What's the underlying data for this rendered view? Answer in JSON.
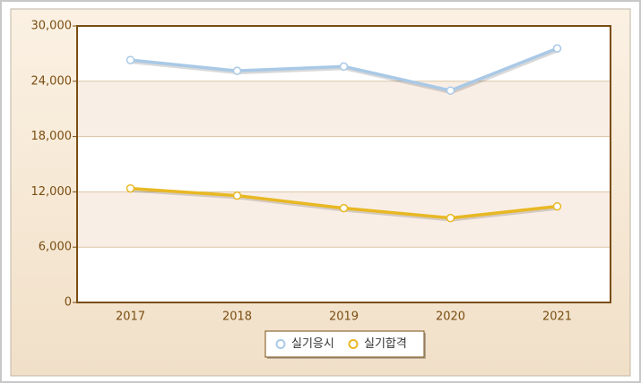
{
  "chart_data": {
    "type": "line",
    "categories": [
      "2017",
      "2018",
      "2019",
      "2020",
      "2021"
    ],
    "series": [
      {
        "name": "실기응시",
        "color": "#a9c9e6",
        "values": [
          26300,
          25130,
          25600,
          22990,
          27560
        ]
      },
      {
        "name": "실기합격",
        "color": "#e8b824",
        "values": [
          12370,
          11590,
          10230,
          9160,
          10420
        ]
      }
    ],
    "ylim": [
      0,
      30000
    ],
    "yticks": [
      0,
      {
        "value": 6000,
        "label": "6,000"
      },
      {
        "value": 12000,
        "label": "12,000"
      },
      {
        "value": 18000,
        "label": "18,000"
      },
      {
        "value": 24000,
        "label": "24,000"
      },
      {
        "value": 30000,
        "label": "30,000"
      }
    ],
    "grid": true,
    "legend": "bottom"
  }
}
